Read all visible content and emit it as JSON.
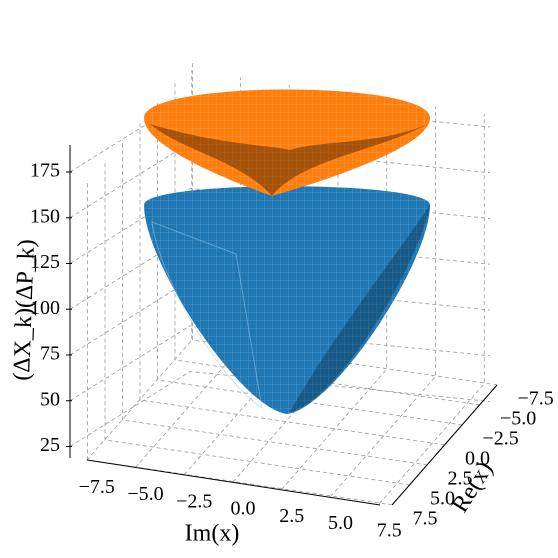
{
  "chart_data": {
    "type": "surface3d",
    "xlabel": "Re(x)",
    "ylabel": "Im(x)",
    "zlabel": "(ΔX_k)(ΔP_k)",
    "xlim": [
      -7.5,
      7.5
    ],
    "ylim": [
      -7.5,
      7.5
    ],
    "zlim": [
      20,
      185
    ],
    "xticks": [
      {
        "value": -7.5,
        "label": "−7.5"
      },
      {
        "value": -5,
        "label": "−5.0"
      },
      {
        "value": -2.5,
        "label": "−2.5"
      },
      {
        "value": 0,
        "label": "0.0"
      },
      2.5,
      {
        "value": 5,
        "label": "5.0"
      },
      7.5
    ],
    "yticks": [
      {
        "value": -7.5,
        "label": "−7.5"
      },
      {
        "value": -5,
        "label": "−5.0"
      },
      {
        "value": -2.5,
        "label": "−2.5"
      },
      {
        "value": 0,
        "label": "0.0"
      },
      2.5,
      {
        "value": 5,
        "label": "5.0"
      },
      7.5
    ],
    "zticks": [
      25,
      50,
      75,
      100,
      125,
      150,
      175
    ],
    "grid": true,
    "series": [
      {
        "color": "#1f77b4"
      },
      {
        "color": "#ff7f0e"
      }
    ]
  }
}
